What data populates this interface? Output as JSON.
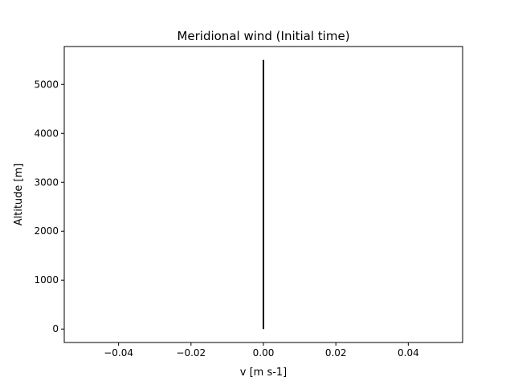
{
  "chart_data": {
    "type": "line",
    "title": "Meridional wind (Initial time)",
    "xlabel": "v [m s-1]",
    "ylabel": "Altitude [m]",
    "xlim": [
      -0.055,
      0.055
    ],
    "ylim": [
      -275,
      5775
    ],
    "xticks": [
      -0.04,
      -0.02,
      0.0,
      0.02,
      0.04
    ],
    "xtick_labels": [
      "−0.04",
      "−0.02",
      "0.00",
      "0.02",
      "0.04"
    ],
    "yticks": [
      0,
      1000,
      2000,
      3000,
      4000,
      5000
    ],
    "ytick_labels": [
      "0",
      "1000",
      "2000",
      "3000",
      "4000",
      "5000"
    ],
    "grid": false,
    "series": [
      {
        "color": "#000000",
        "x": [
          0,
          0
        ],
        "y": [
          0,
          5500
        ]
      }
    ]
  }
}
